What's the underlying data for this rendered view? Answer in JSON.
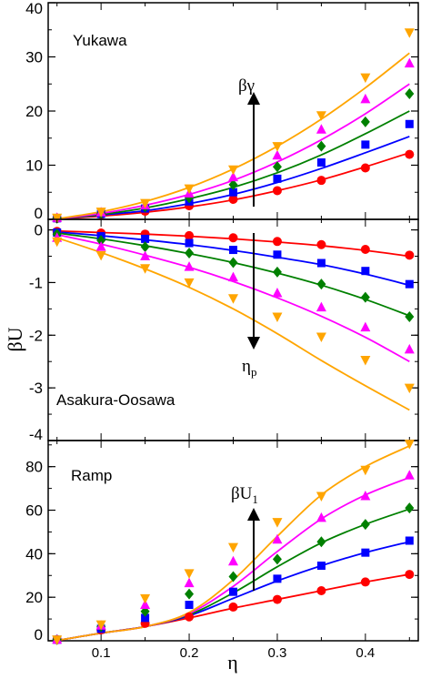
{
  "figure": {
    "ylabel": "βU",
    "xlabel": "η",
    "x_ticks": [
      "0.1",
      "0.2",
      "0.3",
      "0.4"
    ]
  },
  "chart_data": [
    {
      "type": "scatter",
      "title": "Yukawa",
      "annotation": "βγ",
      "annotation_sub": "",
      "annotation_direction": "up",
      "xlim": [
        0.04,
        0.46
      ],
      "ylim": [
        0,
        40
      ],
      "yticks": [
        0,
        10,
        20,
        30,
        40
      ],
      "x": [
        0.05,
        0.1,
        0.15,
        0.2,
        0.25,
        0.3,
        0.35,
        0.4,
        0.45
      ],
      "series": [
        {
          "color": "#ff0000",
          "marker": "circle",
          "values": [
            0.2,
            0.9,
            1.5,
            2.5,
            3.7,
            5.3,
            7.2,
            9.5,
            12.0
          ],
          "fit": [
            0.1,
            0.6,
            1.3,
            2.3,
            3.6,
            5.3,
            7.3,
            9.7,
            12.3
          ]
        },
        {
          "color": "#0000ff",
          "marker": "square",
          "values": [
            0.2,
            1.0,
            2.0,
            3.3,
            5.0,
            7.5,
            10.5,
            13.8,
            17.6
          ],
          "fit": [
            0.1,
            0.8,
            1.6,
            2.9,
            4.6,
            6.8,
            9.4,
            12.3,
            15.3
          ]
        },
        {
          "color": "#008000",
          "marker": "diamond",
          "values": [
            0.2,
            1.1,
            2.3,
            4.0,
            6.4,
            9.7,
            13.5,
            18.0,
            23.2
          ],
          "fit": [
            0.1,
            0.9,
            2.1,
            3.8,
            5.9,
            8.6,
            11.9,
            15.8,
            20.0
          ]
        },
        {
          "color": "#ff00ff",
          "marker": "triangle-up",
          "values": [
            0.3,
            1.3,
            2.6,
            4.8,
            7.8,
            11.8,
            16.6,
            22.2,
            28.8
          ],
          "fit": [
            0.1,
            1.1,
            2.6,
            4.6,
            7.2,
            10.6,
            14.7,
            19.5,
            25.0
          ]
        },
        {
          "color": "#ffa500",
          "marker": "triangle-down",
          "values": [
            0.3,
            1.4,
            3.0,
            5.7,
            9.2,
            13.5,
            19.2,
            26.2,
            34.5
          ],
          "fit": [
            0.1,
            1.4,
            3.3,
            5.9,
            9.3,
            13.5,
            18.5,
            24.3,
            30.7
          ]
        }
      ]
    },
    {
      "type": "scatter",
      "title": "Asakura-Oosawa",
      "annotation": "η",
      "annotation_sub": "p",
      "annotation_direction": "down",
      "xlim": [
        0.04,
        0.46
      ],
      "ylim": [
        -4,
        0.2
      ],
      "yticks": [
        -4,
        -3,
        -2,
        -1,
        0
      ],
      "x": [
        0.05,
        0.1,
        0.15,
        0.2,
        0.25,
        0.3,
        0.35,
        0.4,
        0.45
      ],
      "series": [
        {
          "color": "#ff0000",
          "marker": "circle",
          "values": [
            -0.03,
            -0.06,
            -0.08,
            -0.11,
            -0.15,
            -0.22,
            -0.28,
            -0.37,
            -0.48
          ],
          "fit": [
            -0.02,
            -0.05,
            -0.08,
            -0.12,
            -0.17,
            -0.23,
            -0.3,
            -0.39,
            -0.5
          ]
        },
        {
          "color": "#0000ff",
          "marker": "square",
          "values": [
            -0.05,
            -0.12,
            -0.17,
            -0.25,
            -0.38,
            -0.47,
            -0.63,
            -0.78,
            -1.03
          ],
          "fit": [
            -0.04,
            -0.11,
            -0.19,
            -0.28,
            -0.39,
            -0.52,
            -0.66,
            -0.84,
            -1.05
          ]
        },
        {
          "color": "#008000",
          "marker": "diamond",
          "values": [
            -0.08,
            -0.2,
            -0.32,
            -0.44,
            -0.62,
            -0.8,
            -1.03,
            -1.28,
            -1.65
          ],
          "fit": [
            -0.06,
            -0.17,
            -0.3,
            -0.45,
            -0.62,
            -0.82,
            -1.05,
            -1.32,
            -1.63
          ]
        },
        {
          "color": "#ff00ff",
          "marker": "triangle-up",
          "values": [
            -0.15,
            -0.32,
            -0.5,
            -0.7,
            -0.9,
            -1.2,
            -1.47,
            -1.85,
            -2.27
          ],
          "fit": [
            -0.09,
            -0.27,
            -0.48,
            -0.71,
            -0.98,
            -1.29,
            -1.64,
            -2.04,
            -2.5
          ]
        },
        {
          "color": "#ffa500",
          "marker": "triangle-down",
          "values": [
            -0.22,
            -0.48,
            -0.73,
            -1.0,
            -1.3,
            -1.65,
            -2.03,
            -2.47,
            -3.0
          ],
          "fit": [
            -0.15,
            -0.43,
            -0.74,
            -1.09,
            -1.5,
            -1.97,
            -2.48,
            -2.96,
            -3.42
          ]
        }
      ]
    },
    {
      "type": "scatter",
      "title": "Ramp",
      "annotation": "βU",
      "annotation_sub": "1",
      "annotation_direction": "up",
      "xlim": [
        0.04,
        0.46
      ],
      "ylim": [
        0,
        92
      ],
      "yticks": [
        0,
        20,
        40,
        60,
        80
      ],
      "x": [
        0.05,
        0.1,
        0.15,
        0.2,
        0.25,
        0.3,
        0.35,
        0.4,
        0.45
      ],
      "series": [
        {
          "color": "#ff0000",
          "marker": "circle",
          "values": [
            0.5,
            5,
            8,
            11,
            15.5,
            19,
            23,
            27,
            30.5
          ],
          "fit": [
            0.1,
            3.5,
            6.5,
            10.5,
            15,
            19,
            23,
            27,
            30.5
          ]
        },
        {
          "color": "#0000ff",
          "marker": "square",
          "values": [
            0.5,
            5.5,
            10.5,
            16.5,
            22.5,
            28.5,
            34.5,
            40.5,
            46
          ],
          "fit": [
            0.1,
            3.5,
            6.5,
            11.5,
            19.5,
            27.5,
            34.5,
            40.5,
            45.5
          ]
        },
        {
          "color": "#008000",
          "marker": "diamond",
          "values": [
            0.5,
            6.5,
            13.5,
            21.5,
            29.5,
            37.5,
            45.5,
            53.5,
            61
          ],
          "fit": [
            0.1,
            3.5,
            6.5,
            12,
            22,
            34,
            45,
            53.5,
            60.5
          ]
        },
        {
          "color": "#ff00ff",
          "marker": "triangle-up",
          "values": [
            0.5,
            7,
            16.5,
            26.5,
            36.5,
            46.5,
            56.5,
            66.5,
            76
          ],
          "fit": [
            0.1,
            3.5,
            6.5,
            12.5,
            25,
            41,
            56,
            67,
            75
          ]
        },
        {
          "color": "#ffa500",
          "marker": "triangle-down",
          "values": [
            0.5,
            7.5,
            19.5,
            31,
            43,
            54.5,
            66.5,
            78.5,
            90.5
          ],
          "fit": [
            0.1,
            3.5,
            6.5,
            13,
            28,
            48,
            67,
            80,
            89.5
          ]
        }
      ]
    }
  ]
}
